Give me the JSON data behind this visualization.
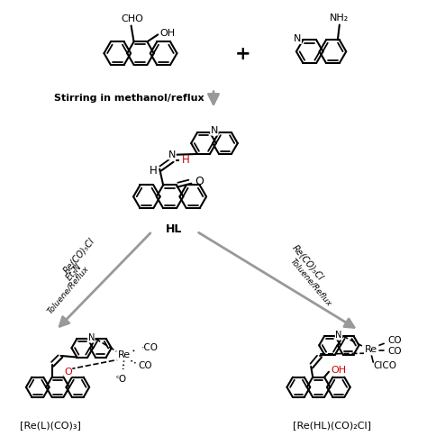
{
  "bg_color": "#ffffff",
  "text_color": "#000000",
  "red_color": "#cc0000",
  "arrow_color": "#999999",
  "label_left": "[Re(L)(CO)₃]",
  "label_right": "[Re(HL)(CO)₂Cl]",
  "label_HL": "HL",
  "stirring_text": "Stirring in methanol/reflux",
  "figsize": [
    4.74,
    4.84
  ],
  "dpi": 100
}
